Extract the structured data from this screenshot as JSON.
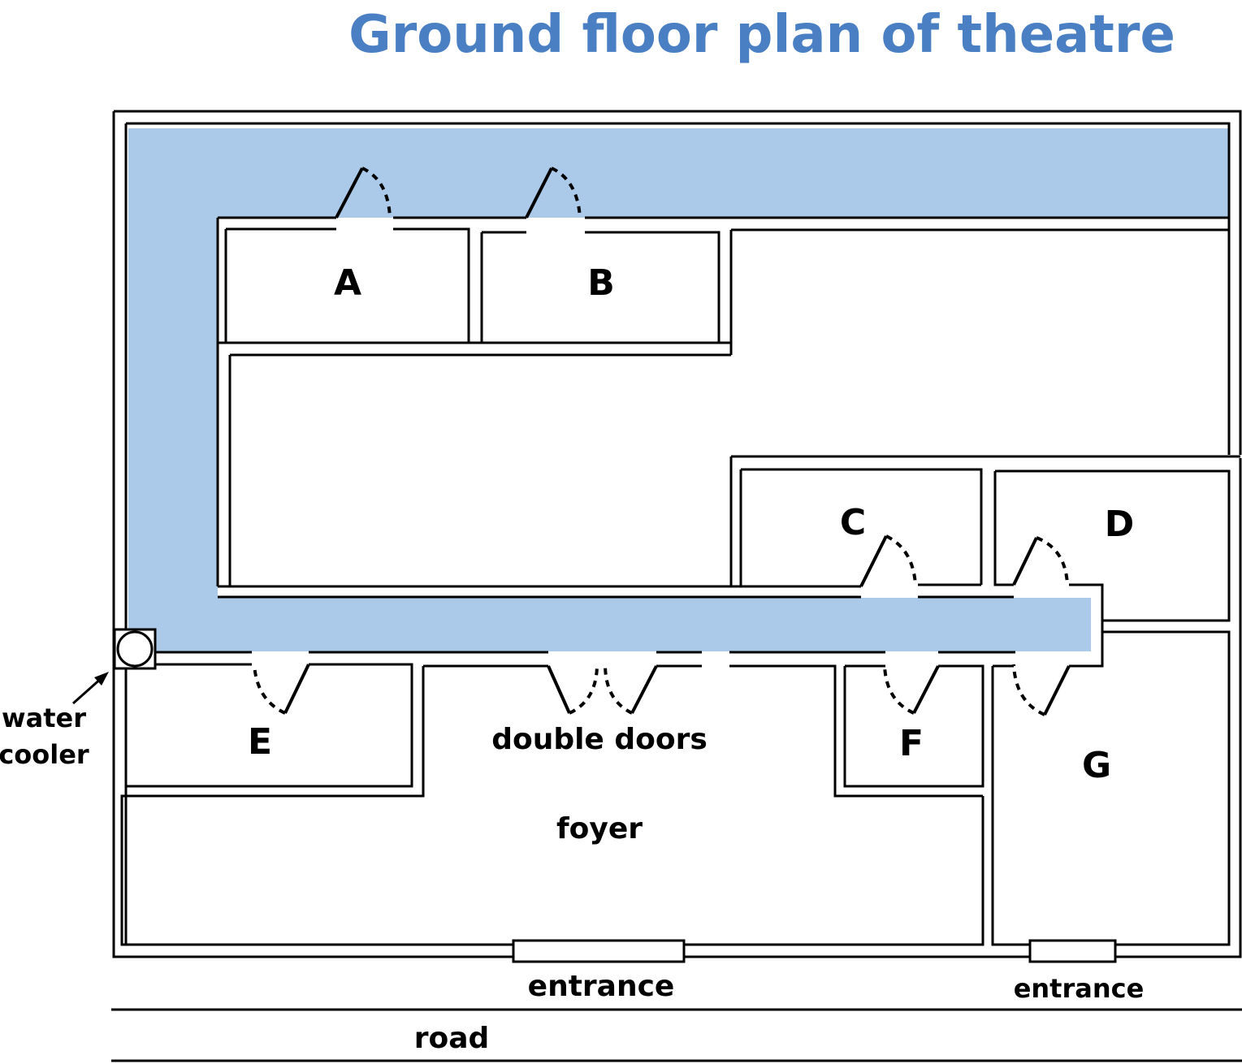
{
  "title": "Ground floor plan of theatre",
  "colors": {
    "corridor": "#abc9e8",
    "title": "#4a80c3",
    "walls": "#000000"
  },
  "rooms": {
    "a": "A",
    "b": "B",
    "c": "C",
    "d": "D",
    "e": "E",
    "f": "F",
    "g": "G"
  },
  "labels": {
    "double_doors": "double doors",
    "foyer": "foyer",
    "entrance_main": "entrance",
    "entrance_side": "entrance",
    "road": "road",
    "water_cooler_line1": "water",
    "water_cooler_line2": "cooler"
  },
  "icons": {
    "water_cooler": "water-cooler-icon",
    "pointer": "arrow-icon"
  }
}
